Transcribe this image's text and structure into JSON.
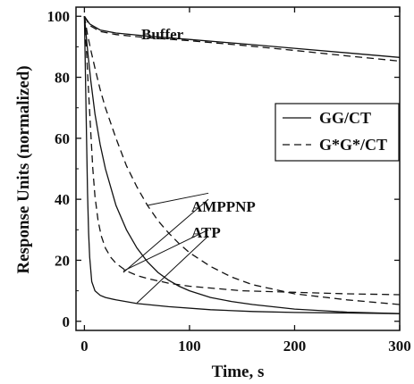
{
  "chart_data": {
    "type": "line",
    "xlabel": "Time, s",
    "ylabel": "Response Units (normalized)",
    "xlim": [
      -8,
      300
    ],
    "ylim": [
      -3,
      103
    ],
    "xticks": [
      0,
      100,
      200,
      300
    ],
    "yticks": [
      0,
      20,
      40,
      60,
      80,
      100
    ],
    "legend_position": "right",
    "legend": [
      {
        "label": "GG/CT",
        "style": "solid"
      },
      {
        "label": "G*G*/CT",
        "style": "dashed"
      }
    ],
    "annotations": [
      {
        "text": "Buffer",
        "x": 55,
        "y": 96
      },
      {
        "text": "AMPPNP",
        "x": 130,
        "y": 42
      },
      {
        "text": "ATP",
        "x": 130,
        "y": 29
      }
    ],
    "series": [
      {
        "style": "solid",
        "group": "Buffer",
        "x": [
          0,
          5,
          15,
          30,
          60,
          100,
          150,
          200,
          250,
          300
        ],
        "y": [
          100,
          97.5,
          95.5,
          94.5,
          93.5,
          92.4,
          91,
          89.5,
          88,
          86.5
        ]
      },
      {
        "style": "dashed",
        "group": "Buffer",
        "x": [
          0,
          5,
          15,
          30,
          60,
          100,
          150,
          200,
          250,
          300
        ],
        "y": [
          100,
          97,
          95,
          94,
          93,
          92,
          90.5,
          88.8,
          87,
          85.3
        ]
      },
      {
        "style": "solid",
        "group": "AMPPNP",
        "x": [
          0,
          3,
          6,
          10,
          15,
          20,
          30,
          40,
          50,
          60,
          70,
          80,
          90,
          100,
          120,
          140,
          160,
          200,
          250,
          300
        ],
        "y": [
          100,
          89,
          79,
          68,
          58,
          50,
          38,
          30,
          24,
          19.5,
          16,
          13.5,
          11.5,
          10,
          7.8,
          6.5,
          5.5,
          4,
          3,
          2.5
        ]
      },
      {
        "style": "dashed",
        "group": "AMPPNP",
        "x": [
          0,
          3,
          6,
          10,
          15,
          20,
          30,
          40,
          50,
          60,
          70,
          80,
          90,
          100,
          120,
          140,
          160,
          180,
          200,
          250,
          300
        ],
        "y": [
          100,
          94,
          89,
          83,
          76,
          70,
          60,
          51,
          44,
          38,
          33,
          29,
          25.5,
          22.5,
          18,
          14.5,
          12,
          10.5,
          9,
          7,
          5.5
        ]
      },
      {
        "style": "solid",
        "group": "ATP",
        "x": [
          0,
          1,
          2,
          3,
          4,
          5,
          7,
          10,
          15,
          20,
          30,
          50,
          80,
          120,
          160,
          200,
          250,
          300
        ],
        "y": [
          100,
          80,
          60,
          42,
          29,
          21,
          13,
          10,
          8.5,
          7.8,
          7,
          5.8,
          4.8,
          3.8,
          3.2,
          2.9,
          2.7,
          2.5
        ]
      },
      {
        "style": "dashed",
        "group": "ATP",
        "x": [
          0,
          2,
          4,
          6,
          8,
          10,
          13,
          16,
          20,
          25,
          30,
          40,
          50,
          60,
          80,
          100,
          150,
          200,
          250,
          300
        ],
        "y": [
          100,
          88,
          75,
          62,
          50,
          41,
          33,
          28,
          24,
          21,
          19,
          16.5,
          15,
          14,
          12.5,
          11.5,
          10,
          9.5,
          9,
          8.7
        ]
      }
    ]
  }
}
